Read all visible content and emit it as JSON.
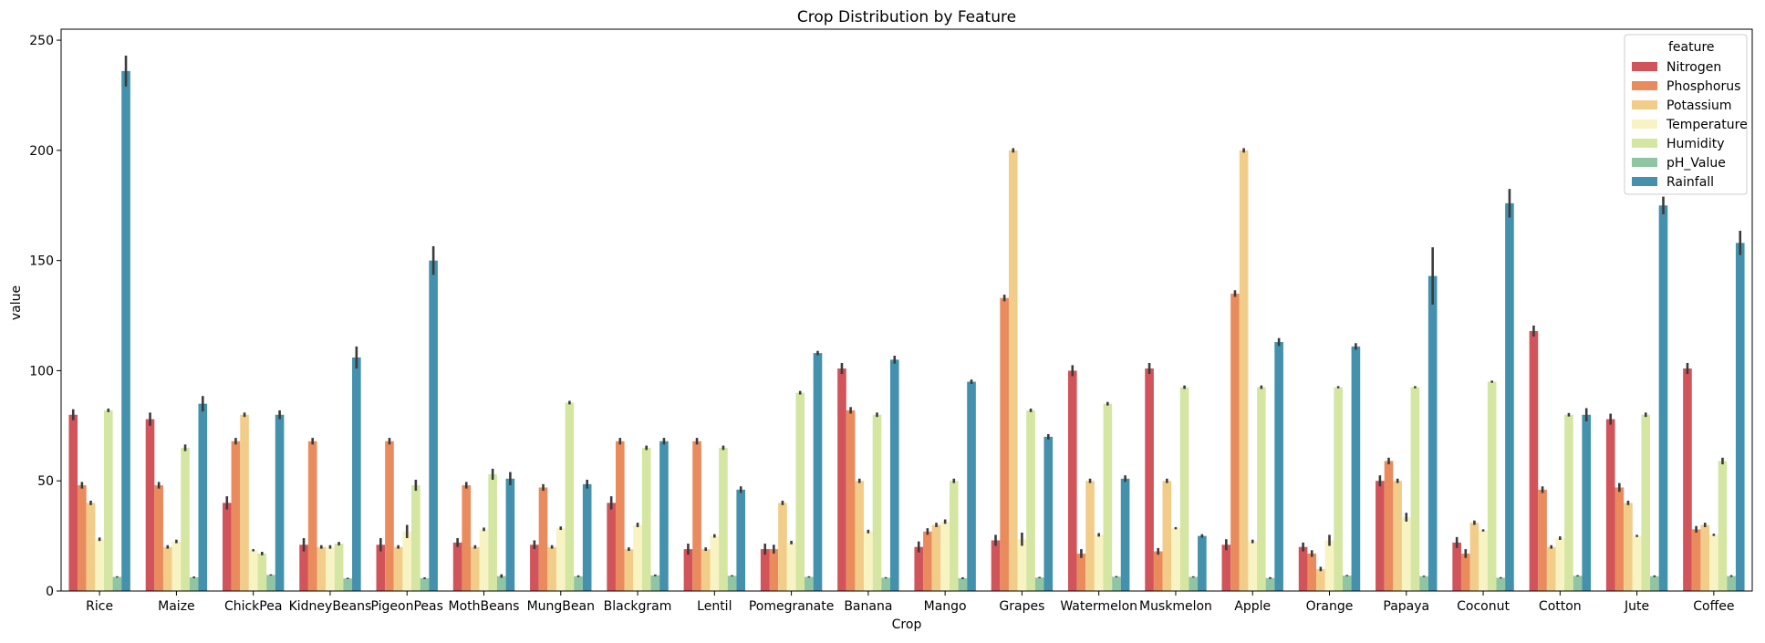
{
  "chart_data": {
    "type": "bar",
    "title": "Crop Distribution by Feature",
    "xlabel": "Crop",
    "ylabel": "value",
    "ylim": [
      0,
      255
    ],
    "yticks": [
      0,
      50,
      100,
      150,
      200,
      250
    ],
    "grid": false,
    "legend": {
      "title": "feature",
      "placement": "top-right"
    },
    "categories": [
      "Rice",
      "Maize",
      "ChickPea",
      "KidneyBeans",
      "PigeonPeas",
      "MothBeans",
      "MungBean",
      "Blackgram",
      "Lentil",
      "Pomegranate",
      "Banana",
      "Mango",
      "Grapes",
      "Watermelon",
      "Muskmelon",
      "Apple",
      "Orange",
      "Papaya",
      "Coconut",
      "Cotton",
      "Jute",
      "Coffee"
    ],
    "series": [
      {
        "name": "Nitrogen",
        "color": "#d1545a",
        "values": [
          80,
          78,
          40,
          21,
          21,
          22,
          21,
          40,
          19,
          19,
          101,
          20,
          23,
          100,
          101,
          21,
          20,
          50,
          22,
          118,
          78,
          101
        ],
        "err": [
          2.5,
          3,
          3,
          3,
          3,
          2,
          2,
          3,
          2.5,
          2.5,
          2.5,
          2.5,
          2.5,
          2.5,
          2.5,
          2.5,
          2,
          2.5,
          2.5,
          2.5,
          2.5,
          2.5
        ]
      },
      {
        "name": "Phosphorus",
        "color": "#e98b5d",
        "values": [
          48,
          48,
          68,
          68,
          68,
          48,
          47,
          68,
          68,
          19,
          82,
          27,
          133,
          17,
          18,
          135,
          17,
          59,
          17,
          46,
          47,
          28
        ],
        "err": [
          1.5,
          1.5,
          1.5,
          1.5,
          1.5,
          1.5,
          1.5,
          1.5,
          1.5,
          2,
          1.5,
          1.5,
          1.5,
          2,
          1.5,
          1.5,
          1.5,
          1.5,
          2,
          1.5,
          2,
          1.5
        ]
      },
      {
        "name": "Potassium",
        "color": "#f2cd8a",
        "values": [
          40,
          20,
          80,
          20,
          20,
          20,
          20,
          19,
          19,
          40,
          50,
          30,
          200,
          50,
          50,
          200,
          10,
          50,
          31,
          20,
          40,
          30
        ],
        "err": [
          1,
          0.8,
          1,
          0.8,
          0.8,
          0.8,
          0.8,
          0.8,
          0.8,
          1,
          1,
          1,
          1,
          1,
          1,
          1,
          1,
          1,
          1,
          0.8,
          1,
          1
        ]
      },
      {
        "name": "Temperature",
        "color": "#f8f3c3",
        "values": [
          23.5,
          22.5,
          18.5,
          20,
          27,
          28,
          28.5,
          30,
          25,
          22,
          27,
          31.5,
          23.5,
          25.5,
          28.5,
          22.5,
          23,
          33.5,
          27.5,
          24,
          25,
          25.5
        ],
        "err": [
          0.8,
          0.8,
          0.5,
          0.8,
          3,
          0.8,
          0.8,
          1,
          0.8,
          0.8,
          0.8,
          1,
          3,
          0.8,
          0.5,
          0.8,
          2.5,
          2,
          0.5,
          0.8,
          0.5,
          0.5
        ]
      },
      {
        "name": "Humidity",
        "color": "#d5e6a3",
        "values": [
          82,
          65,
          17,
          21.5,
          48,
          53,
          85.5,
          65,
          65,
          90,
          80,
          50,
          82,
          85,
          92.5,
          92.5,
          92.5,
          92.5,
          95,
          80,
          80,
          59
        ],
        "err": [
          0.8,
          1.5,
          0.8,
          0.8,
          2.5,
          2.5,
          0.8,
          1,
          1,
          0.8,
          1,
          1,
          0.8,
          0.8,
          0.8,
          0.8,
          0.5,
          0.5,
          0.5,
          0.8,
          1,
          1.5
        ]
      },
      {
        "name": "pH_Value",
        "color": "#8fc5a2",
        "values": [
          6.4,
          6.2,
          7.3,
          5.7,
          5.8,
          6.8,
          6.7,
          7.1,
          6.9,
          6.4,
          6,
          5.8,
          6.1,
          6.5,
          6.4,
          5.9,
          7,
          6.7,
          6,
          6.9,
          6.7,
          6.8
        ],
        "err": [
          0.3,
          0.4,
          0.3,
          0.3,
          0.4,
          0.8,
          0.4,
          0.4,
          0.3,
          0.3,
          0.3,
          0.4,
          0.3,
          0.3,
          0.3,
          0.4,
          0.3,
          0.3,
          0.3,
          0.3,
          0.4,
          0.4
        ]
      },
      {
        "name": "Rainfall",
        "color": "#4391ad",
        "values": [
          236,
          85,
          80,
          106,
          150,
          51,
          48.5,
          68,
          46,
          108,
          105,
          95,
          70,
          51,
          25,
          113,
          111,
          143,
          176,
          80,
          175,
          158
        ],
        "err": [
          7,
          3.5,
          2,
          5,
          6.5,
          3,
          2,
          1.5,
          1.5,
          1,
          1.8,
          1,
          1.2,
          1.5,
          0.8,
          1.8,
          1.5,
          13,
          6.5,
          3,
          4,
          5.5
        ]
      }
    ]
  }
}
